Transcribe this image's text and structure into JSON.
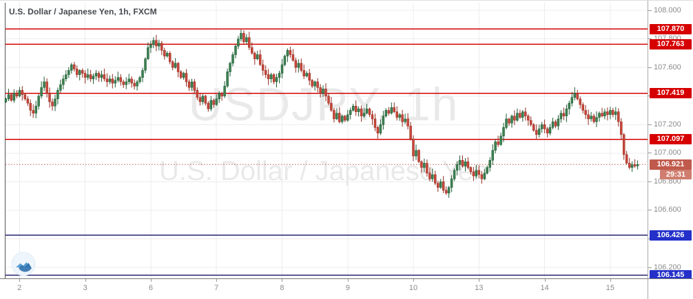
{
  "header": {
    "symbol_title": "U.S. Dollar / Japanese Yen, 1h, FXCM"
  },
  "watermark": {
    "line1": "USDJPY, 1h",
    "line2": "U.S. Dollar / Japanese Yen"
  },
  "price_axis_labels": [
    "108.000",
    "107.800",
    "107.600",
    "107.400",
    "107.200",
    "107.000",
    "106.800",
    "106.600",
    "106.400",
    "106.200"
  ],
  "level_labels": {
    "resistance": [
      "107.870",
      "107.763",
      "107.419",
      "107.097"
    ],
    "support": [
      "106.426",
      "106.145"
    ],
    "current": "106.921",
    "countdown": "29:31"
  },
  "time_axis_labels": [
    "2",
    "3",
    "6",
    "7",
    "8",
    "9",
    "10",
    "13",
    "14",
    "15"
  ],
  "colors": {
    "up_body": "#3d8050",
    "up_border": "#1d5b33",
    "down_body": "#c8473b",
    "down_border": "#932a1f",
    "resistance_line": "#d40000",
    "resistance_label_bg": "#d60000",
    "support_line": "#23236e",
    "support_label_bg": "#2430c9",
    "current_price": "#c05a4c",
    "countdown_bg": "#cf7d6e",
    "grid": "#ececec",
    "axis_text": "#8a8a8a",
    "plot_left_border": "#555",
    "logo_circle": "#eef5fc",
    "logo_dark": "#2f71ae",
    "logo_light": "#5a9fd4"
  },
  "chart_data": {
    "type": "candlestick",
    "symbol": "USDJPY",
    "interval": "1h",
    "exchange": "FXCM",
    "title": "U.S. Dollar / Japanese Yen, 1h, FXCM",
    "ylim": [
      106.123,
      108.068
    ],
    "price_gridlines": [
      108.0,
      107.8,
      107.6,
      107.4,
      107.2,
      107.0,
      106.8,
      106.6,
      106.4,
      106.2
    ],
    "time_ticks": [
      {
        "label": "2",
        "index": 5
      },
      {
        "label": "3",
        "index": 29
      },
      {
        "label": "6",
        "index": 53
      },
      {
        "label": "7",
        "index": 77
      },
      {
        "label": "8",
        "index": 101
      },
      {
        "label": "9",
        "index": 125
      },
      {
        "label": "10",
        "index": 149
      },
      {
        "label": "13",
        "index": 173
      },
      {
        "label": "14",
        "index": 197
      },
      {
        "label": "15",
        "index": 221
      }
    ],
    "levels": {
      "resistance": [
        107.87,
        107.763,
        107.419,
        107.097
      ],
      "support": [
        106.426,
        106.145
      ]
    },
    "current_price": 106.921,
    "countdown": "29:31",
    "first_open": 107.36,
    "closes": [
      107.38,
      107.41,
      107.37,
      107.42,
      107.4,
      107.44,
      107.41,
      107.38,
      107.35,
      107.3,
      107.28,
      107.33,
      107.4,
      107.46,
      107.5,
      107.42,
      107.36,
      107.33,
      107.38,
      107.44,
      107.48,
      107.52,
      107.55,
      107.58,
      107.62,
      107.59,
      107.55,
      107.58,
      107.56,
      107.53,
      107.55,
      107.52,
      107.54,
      107.56,
      107.53,
      107.55,
      107.52,
      107.5,
      107.52,
      107.49,
      107.51,
      107.53,
      107.5,
      107.48,
      107.5,
      107.52,
      107.49,
      107.47,
      107.5,
      107.53,
      107.58,
      107.66,
      107.74,
      107.76,
      107.79,
      107.75,
      107.77,
      107.72,
      107.68,
      107.7,
      107.64,
      107.6,
      107.63,
      107.57,
      107.53,
      107.56,
      107.5,
      107.46,
      107.5,
      107.44,
      107.39,
      107.36,
      107.4,
      107.35,
      107.31,
      107.37,
      107.34,
      107.38,
      107.42,
      107.4,
      107.47,
      107.57,
      107.63,
      107.69,
      107.75,
      107.8,
      107.84,
      107.78,
      107.81,
      107.74,
      107.7,
      107.66,
      107.69,
      107.62,
      107.58,
      107.55,
      107.52,
      107.55,
      107.5,
      107.53,
      107.56,
      107.62,
      107.68,
      107.72,
      107.69,
      107.65,
      107.6,
      107.63,
      107.58,
      107.54,
      107.56,
      107.51,
      107.47,
      107.5,
      107.46,
      107.42,
      107.45,
      107.4,
      107.35,
      107.3,
      107.24,
      107.28,
      107.22,
      107.26,
      107.23,
      107.27,
      107.3,
      107.33,
      107.29,
      107.31,
      107.26,
      107.28,
      107.31,
      107.27,
      107.24,
      107.18,
      107.14,
      107.2,
      107.26,
      107.3,
      107.28,
      107.32,
      107.29,
      107.25,
      107.27,
      107.22,
      107.24,
      107.19,
      107.1,
      106.98,
      107.02,
      106.94,
      106.9,
      106.93,
      106.86,
      106.82,
      106.85,
      106.79,
      106.76,
      106.8,
      106.74,
      106.72,
      106.76,
      106.82,
      106.88,
      106.92,
      106.95,
      106.91,
      106.94,
      106.9,
      106.87,
      106.84,
      106.88,
      106.85,
      106.82,
      106.86,
      106.9,
      106.95,
      107.02,
      107.08,
      107.06,
      107.12,
      107.18,
      107.24,
      107.21,
      107.26,
      107.23,
      107.28,
      107.25,
      107.29,
      107.26,
      107.23,
      107.2,
      107.16,
      107.13,
      107.17,
      107.2,
      107.17,
      107.14,
      107.18,
      107.22,
      107.19,
      107.24,
      107.28,
      107.26,
      107.31,
      107.35,
      107.39,
      107.42,
      107.38,
      107.34,
      107.3,
      107.27,
      107.24,
      107.26,
      107.22,
      107.25,
      107.28,
      107.26,
      107.29,
      107.27,
      107.3,
      107.27,
      107.29,
      107.22,
      107.13,
      106.99,
      106.93,
      106.9,
      106.92,
      106.91,
      106.921
    ]
  }
}
